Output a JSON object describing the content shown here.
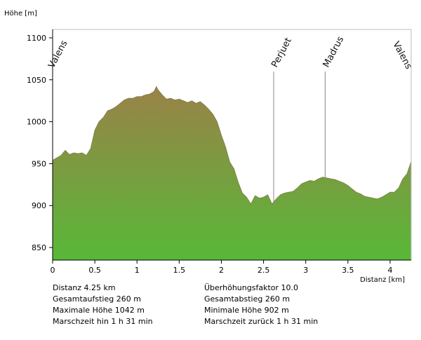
{
  "chart_data": {
    "type": "area",
    "ylabel": "Höhe [m]",
    "xlabel": "Distanz [km]",
    "xlim": [
      0,
      4.25
    ],
    "ylim": [
      835,
      1110
    ],
    "x_ticks": [
      "0",
      "0.5",
      "1",
      "1.5",
      "2",
      "2.5",
      "3",
      "3.5",
      "4"
    ],
    "y_ticks": [
      "850",
      "900",
      "950",
      "1000",
      "1050",
      "1100"
    ],
    "grid": false,
    "colors": {
      "fill_top": "#9a8248",
      "fill_bottom": "#58b838",
      "marker_line": "#888888"
    },
    "x": [
      0,
      0.05,
      0.1,
      0.15,
      0.2,
      0.25,
      0.3,
      0.35,
      0.4,
      0.45,
      0.5,
      0.55,
      0.6,
      0.65,
      0.7,
      0.75,
      0.8,
      0.85,
      0.9,
      0.95,
      1.0,
      1.05,
      1.1,
      1.15,
      1.2,
      1.23,
      1.25,
      1.3,
      1.35,
      1.4,
      1.45,
      1.5,
      1.55,
      1.6,
      1.65,
      1.7,
      1.75,
      1.8,
      1.85,
      1.9,
      1.95,
      2.0,
      2.05,
      2.1,
      2.15,
      2.2,
      2.25,
      2.3,
      2.35,
      2.4,
      2.45,
      2.5,
      2.55,
      2.6,
      2.65,
      2.7,
      2.75,
      2.8,
      2.85,
      2.9,
      2.95,
      3.0,
      3.05,
      3.1,
      3.15,
      3.2,
      3.25,
      3.3,
      3.35,
      3.4,
      3.45,
      3.5,
      3.55,
      3.6,
      3.65,
      3.7,
      3.75,
      3.8,
      3.85,
      3.9,
      3.95,
      4.0,
      4.05,
      4.1,
      4.15,
      4.2,
      4.25
    ],
    "y": [
      954,
      957,
      960,
      966,
      961,
      963,
      962,
      963,
      960,
      968,
      990,
      1000,
      1005,
      1013,
      1015,
      1018,
      1022,
      1026,
      1028,
      1028,
      1030,
      1030,
      1032,
      1033,
      1036,
      1042,
      1038,
      1032,
      1027,
      1028,
      1026,
      1027,
      1025,
      1023,
      1025,
      1022,
      1024,
      1020,
      1015,
      1009,
      1000,
      984,
      970,
      952,
      944,
      928,
      915,
      910,
      902,
      912,
      909,
      910,
      913,
      902,
      908,
      913,
      915,
      916,
      917,
      921,
      926,
      928,
      930,
      929,
      932,
      934,
      933,
      932,
      931,
      929,
      927,
      924,
      920,
      916,
      914,
      911,
      910,
      909,
      908,
      910,
      913,
      916,
      916,
      921,
      932,
      938,
      953
    ],
    "place_labels": [
      {
        "name": "Valens",
        "x": 0.0
      },
      {
        "name": "Perjuet",
        "x": 2.62
      },
      {
        "name": "Madrus",
        "x": 3.23
      },
      {
        "name": "Valens",
        "x": 4.25
      }
    ],
    "stats_left": [
      "Distanz 4.25 km",
      "Gesamtaufstieg  260 m",
      "Maximale Höhe  1042 m",
      "Marschzeit hin  1 h 31 min"
    ],
    "stats_right": [
      "Überhöhungsfaktor 10.0",
      "Gesamtabstieg  260 m",
      "Minimale Höhe  902 m",
      "Marschzeit zurück  1 h 31 min"
    ]
  }
}
